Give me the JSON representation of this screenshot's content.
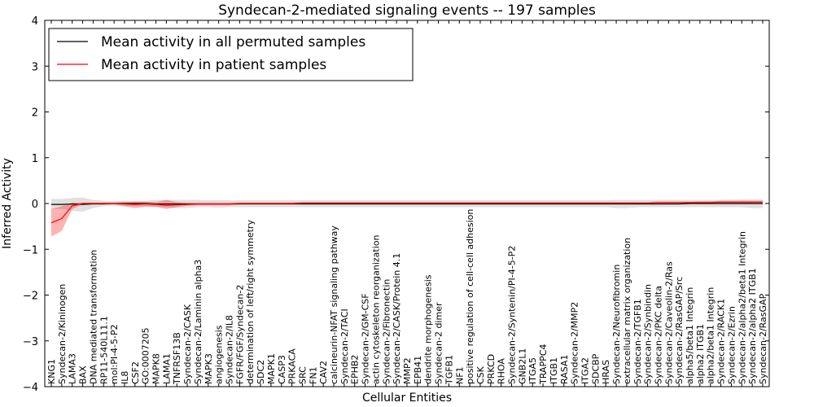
{
  "chart_data": {
    "type": "line",
    "title": "Syndecan-2-mediated signaling events -- 197 samples",
    "xlabel": "Cellular Entities",
    "ylabel": "Inferred Activity",
    "ylim": [
      -4,
      4
    ],
    "yticks": [
      "4",
      "3",
      "2",
      "1",
      "0",
      "−1",
      "−2",
      "−3",
      "−4"
    ],
    "ytick_values": [
      4,
      3,
      2,
      1,
      0,
      -1,
      -2,
      -3,
      -4
    ],
    "grid": false,
    "legend": {
      "placement": "top-left",
      "entries": [
        {
          "label": "Mean activity in all permuted samples",
          "color": "#000000"
        },
        {
          "label": "Mean activity in patient samples",
          "color": "#ff0000"
        }
      ]
    },
    "categories": [
      "KNG1",
      "Syndecan-2/Kininogen",
      "LAMA3",
      "BAX",
      "DNA mediated transformation",
      "RP11-540L11.1",
      "mol:PI-4-5-P2",
      "IL8",
      "CSF2",
      "GO:0007205",
      "MAPK8",
      "LAMA1",
      "TNFRSF13B",
      "Syndecan-2/CASK",
      "Syndecan-2/Laminin alpha3",
      "MAPK3",
      "angiogenesis",
      "Syndecan-2/IL8",
      "FGFR/FGF/Syndecan-2",
      "determination of left/right symmetry",
      "SDC2",
      "MAPK1",
      "CASP3",
      "PRKACA",
      "SRC",
      "FN1",
      "CAV2",
      "calcineurin-NFAT signaling pathway",
      "Syndecan-2/TACI",
      "EPHB2",
      "Syndecan-2/GM-CSF",
      "actin cytoskeleton reorganization",
      "Syndecan-2/Fibronectin",
      "Syndecan-2/CASK/Protein 4.1",
      "MMP2",
      "EPB41",
      "dendrite morphogenesis",
      "Syndecan-2 dimer",
      "TGFB1",
      "NF1",
      "positive regulation of cell-cell adhesion",
      "CSK",
      "PRKCD",
      "RHOA",
      "Syndecan-2/Syntenin/PI-4-5-P2",
      "GNB2L1",
      "ITGA5",
      "TRAPPC4",
      "ITGB1",
      "RASA1",
      "Syndecan-2/MMP2",
      "ITGA2",
      "SDCBP",
      "HRAS",
      "Syndecan-2/Neurofibromin",
      "extracellular matrix organization",
      "Syndecan-2/TGFB1",
      "Syndecan-2/Synbindin",
      "Syndecan-2/PKC delta",
      "Syndecan-2/Caveolin-2/Ras",
      "Syndecan-2/RasGAP/Src",
      "alpha5/beta1 Integrin",
      "alpha2 ITGB1",
      "alpha2/beta1 Integrin",
      "Syndecan-2/RACK1",
      "Syndecan-2/Ezrin",
      "Syndecan-2/alpha2/beta1 Integrin",
      "Syndecan-2/alpha2 ITGB1",
      "Syndecan-2/RasGAP"
    ],
    "series": [
      {
        "name": "Mean activity in all permuted samples",
        "color": "#000000",
        "values": [
          -0.02,
          -0.02,
          -0.01,
          -0.02,
          -0.01,
          -0.01,
          0,
          0,
          0,
          0,
          -0.01,
          -0.01,
          -0.01,
          -0.01,
          -0.01,
          -0.01,
          -0.01,
          -0.01,
          -0.01,
          -0.01,
          -0.01,
          -0.01,
          -0.01,
          -0.01,
          -0.01,
          -0.01,
          -0.01,
          -0.01,
          -0.01,
          -0.01,
          -0.01,
          -0.01,
          -0.01,
          -0.01,
          -0.01,
          -0.01,
          -0.01,
          -0.01,
          -0.01,
          -0.01,
          -0.01,
          -0.01,
          -0.01,
          -0.01,
          -0.01,
          -0.01,
          -0.01,
          -0.01,
          -0.01,
          -0.01,
          -0.01,
          -0.01,
          -0.01,
          -0.01,
          -0.01,
          -0.01,
          -0.01,
          -0.01,
          -0.01,
          -0.01,
          -0.01,
          0,
          0,
          0,
          0,
          0,
          0,
          0,
          0
        ],
        "lower": [
          -0.12,
          -0.12,
          -0.16,
          -0.18,
          -0.1,
          -0.06,
          -0.05,
          -0.06,
          -0.06,
          -0.06,
          -0.08,
          -0.08,
          -0.1,
          -0.1,
          -0.08,
          -0.08,
          -0.09,
          -0.08,
          -0.08,
          -0.08,
          -0.08,
          -0.08,
          -0.08,
          -0.08,
          -0.08,
          -0.08,
          -0.08,
          -0.08,
          -0.08,
          -0.08,
          -0.08,
          -0.08,
          -0.08,
          -0.08,
          -0.08,
          -0.08,
          -0.08,
          -0.08,
          -0.08,
          -0.08,
          -0.08,
          -0.08,
          -0.08,
          -0.08,
          -0.08,
          -0.08,
          -0.08,
          -0.08,
          -0.08,
          -0.08,
          -0.08,
          -0.08,
          -0.08,
          -0.08,
          -0.1,
          -0.1,
          -0.08,
          -0.08,
          -0.08,
          -0.08,
          -0.08,
          -0.08,
          -0.08,
          -0.08,
          -0.08,
          -0.08,
          -0.08,
          -0.1,
          -0.1
        ],
        "upper": [
          0.1,
          0.1,
          0.12,
          0.13,
          0.08,
          0.06,
          0.05,
          0.06,
          0.06,
          0.06,
          0.08,
          0.08,
          0.08,
          0.08,
          0.08,
          0.07,
          0.07,
          0.07,
          0.07,
          0.07,
          0.07,
          0.07,
          0.07,
          0.07,
          0.07,
          0.07,
          0.07,
          0.07,
          0.07,
          0.07,
          0.07,
          0.07,
          0.07,
          0.07,
          0.07,
          0.07,
          0.07,
          0.07,
          0.07,
          0.07,
          0.07,
          0.07,
          0.07,
          0.07,
          0.07,
          0.07,
          0.07,
          0.07,
          0.07,
          0.07,
          0.07,
          0.07,
          0.07,
          0.07,
          0.08,
          0.08,
          0.08,
          0.08,
          0.08,
          0.08,
          0.08,
          0.08,
          0.08,
          0.08,
          0.08,
          0.08,
          0.09,
          0.09,
          0.09
        ]
      },
      {
        "name": "Mean activity in patient samples",
        "color": "#ff0000",
        "values": [
          -0.42,
          -0.33,
          -0.05,
          0,
          0,
          0,
          0,
          -0.01,
          -0.02,
          -0.01,
          -0.02,
          -0.04,
          -0.03,
          -0.02,
          -0.01,
          -0.01,
          -0.01,
          -0.01,
          0,
          0,
          0,
          0,
          0,
          0,
          0.01,
          0.01,
          0.01,
          0.01,
          0.01,
          0.01,
          0.01,
          0.01,
          0.01,
          0.01,
          0.01,
          0.01,
          0.01,
          0.01,
          0.01,
          0.01,
          0.01,
          0.01,
          0.01,
          0.01,
          0.01,
          0.01,
          0.01,
          0.01,
          0.01,
          0.01,
          0.01,
          0.01,
          0.01,
          0.01,
          0.01,
          0.01,
          0.01,
          0.01,
          0.02,
          0.02,
          0.02,
          0.02,
          0.02,
          0.02,
          0.03,
          0.03,
          0.03,
          0.03,
          0.03
        ],
        "lower": [
          -0.72,
          -0.6,
          -0.12,
          -0.02,
          -0.02,
          -0.02,
          -0.02,
          -0.06,
          -0.1,
          -0.07,
          -0.07,
          -0.12,
          -0.08,
          -0.05,
          -0.04,
          -0.04,
          -0.04,
          -0.04,
          -0.02,
          -0.02,
          -0.02,
          -0.02,
          -0.02,
          -0.02,
          -0.01,
          -0.01,
          -0.01,
          -0.01,
          -0.01,
          -0.01,
          -0.01,
          -0.01,
          -0.01,
          -0.01,
          -0.01,
          -0.01,
          -0.01,
          -0.01,
          -0.01,
          -0.01,
          -0.01,
          -0.01,
          -0.01,
          -0.01,
          -0.01,
          -0.01,
          -0.01,
          -0.01,
          -0.01,
          -0.01,
          -0.01,
          -0.01,
          -0.01,
          -0.01,
          -0.01,
          -0.01,
          -0.01,
          -0.01,
          0,
          0,
          0,
          0,
          0,
          0,
          0,
          0,
          0,
          0,
          0
        ],
        "upper": [
          -0.12,
          -0.06,
          0.02,
          0.02,
          0.02,
          0.02,
          0.02,
          0.03,
          0.04,
          0.04,
          0.03,
          0.08,
          0.03,
          0.02,
          0.02,
          0.02,
          0.02,
          0.02,
          0.02,
          0.02,
          0.02,
          0.02,
          0.02,
          0.02,
          0.03,
          0.03,
          0.03,
          0.03,
          0.03,
          0.03,
          0.03,
          0.03,
          0.03,
          0.03,
          0.03,
          0.03,
          0.03,
          0.03,
          0.03,
          0.03,
          0.03,
          0.03,
          0.03,
          0.03,
          0.03,
          0.03,
          0.03,
          0.03,
          0.03,
          0.03,
          0.03,
          0.03,
          0.03,
          0.03,
          0.03,
          0.03,
          0.03,
          0.03,
          0.04,
          0.04,
          0.04,
          0.04,
          0.05,
          0.05,
          0.06,
          0.06,
          0.06,
          0.06,
          0.06
        ]
      }
    ]
  }
}
